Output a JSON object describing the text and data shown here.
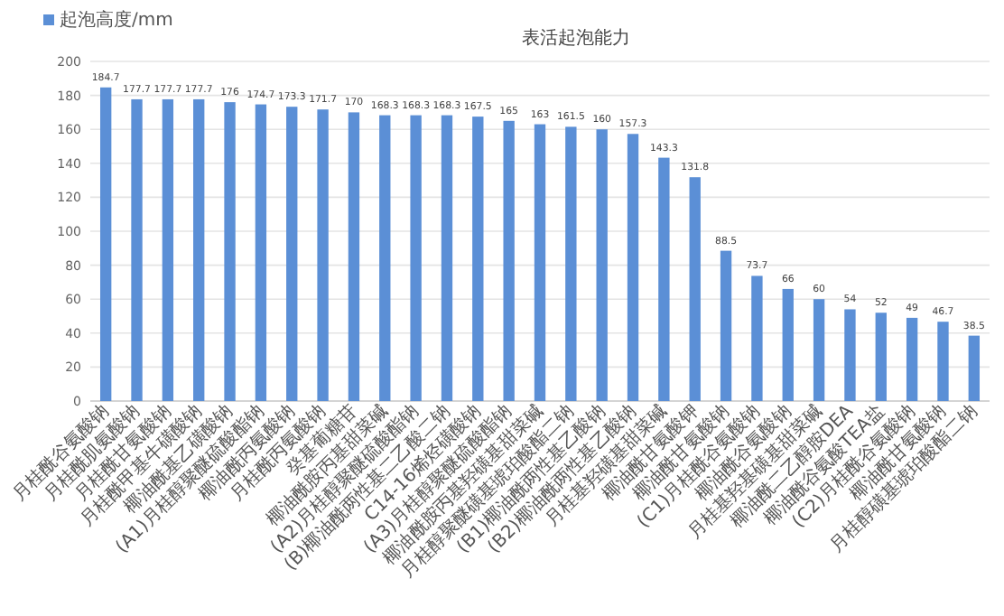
{
  "chart_data": {
    "type": "bar",
    "title": "表活起泡能力",
    "categories": [
      "月桂酰谷氨酸钠",
      "月桂酰肌氨酸钠",
      "月桂酰甘氨酸钠",
      "月桂酰甲基牛磺酸钠",
      "椰油酰基乙磺酸钠",
      "(A1)月桂醇聚醚硫酸酯钠",
      "椰油酰丙氨酸钠",
      "月桂酰丙氨酸钠",
      "癸基葡糖苷",
      "椰油酰胺丙基甜菜碱",
      "(A2)月桂醇聚醚硫酸酯钠",
      "(B)椰油酰两性基二乙酸二钠",
      "C14-16烯烃磺酸钠",
      "(A3)月桂醇聚醚硫酸酯钠",
      "椰油酰胺丙基羟磺基甜菜碱",
      "月桂醇聚醚磺基琥珀酸酯二钠",
      "(B1)椰油酰两性基乙酸钠",
      "(B2)椰油酰两性基乙酸钠",
      "月桂基羟磺基甜菜碱",
      "椰油酰甘氨酸钾",
      "椰油酰甘氨酸钠",
      "(C1)月桂酰谷氨酸钠",
      "椰油酰谷氨酸钠",
      "月桂基羟基磺基甜菜碱",
      "椰油酰二乙醇胺DEA",
      "椰油酰谷氨酸TEA盐",
      "(C2)月桂酰谷氨酸钠",
      "椰油酰甘氨酸钠",
      "月桂醇磺基琥珀酸酯二钠"
    ],
    "series": [
      {
        "name": "起泡高度/mm",
        "color": "#5b8fd6",
        "values": [
          184.7,
          177.7,
          177.7,
          177.7,
          176,
          174.7,
          173.3,
          171.7,
          170,
          168.3,
          168.3,
          168.3,
          167.5,
          165,
          163,
          161.5,
          160,
          157.3,
          143.3,
          131.8,
          88.5,
          73.7,
          66,
          60,
          54,
          52,
          49,
          46.7,
          38.5
        ]
      }
    ],
    "ylim": [
      0,
      200
    ],
    "yticks": [
      0,
      20,
      40,
      60,
      80,
      100,
      120,
      140,
      160,
      180,
      200
    ],
    "grid": "y",
    "legend": "top left",
    "data_labels": true
  }
}
